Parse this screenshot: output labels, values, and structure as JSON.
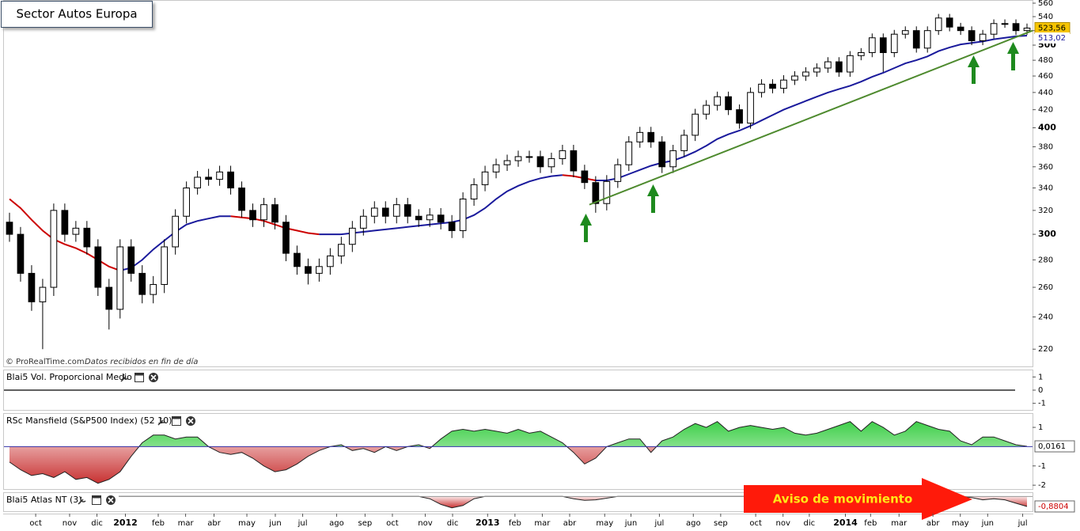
{
  "chart_data": [
    {
      "type": "candlestick",
      "title": "Sector Autos Europa",
      "source": "© ProRealTime.com",
      "source_note": "Datos recibidos en fin de día",
      "log_scale": true,
      "ylim": [
        210,
        560
      ],
      "yticks": [
        220,
        240,
        260,
        280,
        300,
        320,
        340,
        360,
        380,
        400,
        420,
        440,
        460,
        480,
        500,
        520,
        540,
        560
      ],
      "xlim": [
        -0.5,
        93.5
      ],
      "xticks": [
        {
          "value": 2.4,
          "label": "oct"
        },
        {
          "value": 5.5,
          "label": "nov"
        },
        {
          "value": 8.0,
          "label": "dic"
        },
        {
          "value": 10.6,
          "label": "2012"
        },
        {
          "value": 13.6,
          "label": "feb"
        },
        {
          "value": 16.1,
          "label": "mar"
        },
        {
          "value": 18.7,
          "label": "abr"
        },
        {
          "value": 21.7,
          "label": "may"
        },
        {
          "value": 24.3,
          "label": "jun"
        },
        {
          "value": 26.8,
          "label": "jul"
        },
        {
          "value": 29.9,
          "label": "ago"
        },
        {
          "value": 32.5,
          "label": "sep"
        },
        {
          "value": 35.0,
          "label": "oct"
        },
        {
          "value": 38.0,
          "label": "nov"
        },
        {
          "value": 40.5,
          "label": "dic"
        },
        {
          "value": 43.7,
          "label": "2013"
        },
        {
          "value": 46.2,
          "label": "feb"
        },
        {
          "value": 48.7,
          "label": "mar"
        },
        {
          "value": 51.2,
          "label": "abr"
        },
        {
          "value": 54.4,
          "label": "may"
        },
        {
          "value": 56.8,
          "label": "jun"
        },
        {
          "value": 59.4,
          "label": "jul"
        },
        {
          "value": 62.5,
          "label": "ago"
        },
        {
          "value": 65.0,
          "label": "sep"
        },
        {
          "value": 68.2,
          "label": "oct"
        },
        {
          "value": 70.7,
          "label": "nov"
        },
        {
          "value": 73.1,
          "label": "dic"
        },
        {
          "value": 76.4,
          "label": "2014"
        },
        {
          "value": 78.7,
          "label": "feb"
        },
        {
          "value": 81.3,
          "label": "mar"
        },
        {
          "value": 84.4,
          "label": "abr"
        },
        {
          "value": 86.9,
          "label": "may"
        },
        {
          "value": 89.4,
          "label": "jun"
        },
        {
          "value": 92.6,
          "label": "jul"
        }
      ],
      "up_color": "#ffffff",
      "down_color": "#000000",
      "candles": [
        [
          310,
          318,
          294,
          300
        ],
        [
          300,
          306,
          264,
          270
        ],
        [
          270,
          276,
          244,
          250
        ],
        [
          250,
          266,
          220,
          260
        ],
        [
          260,
          326,
          254,
          320
        ],
        [
          320,
          326,
          294,
          300
        ],
        [
          300,
          311,
          294,
          305
        ],
        [
          305,
          311,
          284,
          290
        ],
        [
          290,
          296,
          254,
          260
        ],
        [
          260,
          266,
          232,
          245
        ],
        [
          245,
          296,
          239,
          290
        ],
        [
          290,
          296,
          264,
          270
        ],
        [
          270,
          276,
          249,
          255
        ],
        [
          255,
          268,
          249,
          262
        ],
        [
          262,
          296,
          256,
          290
        ],
        [
          290,
          321,
          284,
          315
        ],
        [
          315,
          346,
          309,
          340
        ],
        [
          340,
          356,
          334,
          350
        ],
        [
          350,
          358,
          342,
          348
        ],
        [
          348,
          361,
          342,
          355
        ],
        [
          355,
          361,
          334,
          340
        ],
        [
          340,
          346,
          314,
          320
        ],
        [
          320,
          326,
          306,
          312
        ],
        [
          312,
          331,
          306,
          325
        ],
        [
          325,
          331,
          304,
          310
        ],
        [
          310,
          316,
          279,
          285
        ],
        [
          285,
          291,
          269,
          275
        ],
        [
          275,
          281,
          262,
          270
        ],
        [
          270,
          281,
          264,
          275
        ],
        [
          275,
          289,
          269,
          283
        ],
        [
          283,
          298,
          277,
          292
        ],
        [
          292,
          311,
          286,
          305
        ],
        [
          305,
          321,
          299,
          315
        ],
        [
          315,
          328,
          309,
          322
        ],
        [
          322,
          328,
          309,
          315
        ],
        [
          315,
          331,
          309,
          325
        ],
        [
          325,
          331,
          309,
          315
        ],
        [
          315,
          321,
          306,
          312
        ],
        [
          312,
          322,
          306,
          316
        ],
        [
          316,
          322,
          304,
          310
        ],
        [
          310,
          316,
          297,
          303
        ],
        [
          303,
          336,
          297,
          330
        ],
        [
          330,
          349,
          324,
          343
        ],
        [
          343,
          361,
          337,
          355
        ],
        [
          355,
          368,
          349,
          362
        ],
        [
          362,
          372,
          356,
          366
        ],
        [
          366,
          376,
          360,
          370
        ],
        [
          370,
          376,
          364,
          370
        ],
        [
          370,
          376,
          354,
          360
        ],
        [
          360,
          374,
          354,
          368
        ],
        [
          368,
          382,
          362,
          376
        ],
        [
          376,
          382,
          350,
          356
        ],
        [
          356,
          362,
          339,
          345
        ],
        [
          345,
          351,
          318,
          326
        ],
        [
          326,
          352,
          320,
          346
        ],
        [
          346,
          368,
          340,
          362
        ],
        [
          362,
          391,
          356,
          385
        ],
        [
          385,
          401,
          379,
          395
        ],
        [
          395,
          401,
          379,
          385
        ],
        [
          385,
          391,
          354,
          360
        ],
        [
          360,
          382,
          354,
          376
        ],
        [
          376,
          398,
          370,
          392
        ],
        [
          392,
          421,
          386,
          415
        ],
        [
          415,
          431,
          409,
          425
        ],
        [
          425,
          441,
          419,
          435
        ],
        [
          435,
          441,
          414,
          420
        ],
        [
          420,
          426,
          399,
          405
        ],
        [
          405,
          446,
          399,
          440
        ],
        [
          440,
          456,
          434,
          450
        ],
        [
          450,
          456,
          439,
          445
        ],
        [
          445,
          461,
          439,
          455
        ],
        [
          455,
          466,
          449,
          460
        ],
        [
          460,
          471,
          454,
          465
        ],
        [
          465,
          476,
          459,
          470
        ],
        [
          470,
          484,
          464,
          478
        ],
        [
          478,
          484,
          459,
          465
        ],
        [
          465,
          492,
          459,
          486
        ],
        [
          486,
          496,
          480,
          490
        ],
        [
          490,
          516,
          484,
          510
        ],
        [
          510,
          516,
          465,
          490
        ],
        [
          490,
          521,
          484,
          515
        ],
        [
          515,
          526,
          509,
          520
        ],
        [
          520,
          526,
          490,
          496
        ],
        [
          496,
          526,
          490,
          520
        ],
        [
          520,
          544,
          514,
          538
        ],
        [
          538,
          544,
          519,
          525
        ],
        [
          525,
          531,
          514,
          520
        ],
        [
          520,
          526,
          500,
          506
        ],
        [
          506,
          521,
          500,
          515
        ],
        [
          515,
          536,
          509,
          530
        ],
        [
          530,
          536,
          524,
          530
        ],
        [
          530,
          536,
          514,
          520
        ],
        [
          520,
          530,
          514,
          523.56
        ]
      ],
      "ma": {
        "rising_color": "#1a1a9c",
        "falling_color": "#cc0000",
        "values": [
          330,
          322,
          312,
          303,
          296,
          292,
          289,
          285,
          280,
          275,
          272,
          274,
          280,
          288,
          295,
          302,
          308,
          311,
          313,
          315,
          315,
          314,
          313,
          311,
          308,
          305,
          303,
          301,
          300,
          300,
          300,
          301,
          302,
          303,
          304,
          305,
          306,
          307,
          308,
          309,
          310,
          312,
          316,
          322,
          330,
          337,
          342,
          346,
          349,
          351,
          352,
          351,
          349,
          347,
          347,
          349,
          353,
          357,
          361,
          364,
          366,
          370,
          375,
          381,
          388,
          393,
          397,
          402,
          408,
          414,
          420,
          425,
          430,
          435,
          440,
          444,
          448,
          453,
          459,
          464,
          470,
          476,
          480,
          485,
          492,
          497,
          501,
          503,
          505,
          508,
          510,
          512,
          513.02
        ]
      },
      "trendline": {
        "x": [
          53,
          93.5
        ],
        "values": [
          325,
          520
        ],
        "color": "#4e8a2e"
      },
      "last_price": {
        "value": 523.56,
        "label": "523,56"
      },
      "last_ma": {
        "value": 513.02,
        "label": "513,02"
      }
    },
    {
      "type": "level",
      "title": "Blai5 Vol. Proporcional Medio",
      "value": 0,
      "ylim": [
        -1.5,
        1.5
      ],
      "yticks": [
        1,
        0,
        -1
      ]
    },
    {
      "type": "area",
      "title": "RSc Mansfield (S&P500 Index) (52 10)",
      "ylim": [
        -2.2,
        1.7
      ],
      "yticks": [
        1,
        -1,
        -2
      ],
      "baseline_color": "#3333aa",
      "values": [
        -0.8,
        -1.2,
        -1.5,
        -1.4,
        -1.6,
        -1.3,
        -1.7,
        -1.6,
        -1.9,
        -1.7,
        -1.3,
        -0.5,
        0.2,
        0.6,
        0.6,
        0.4,
        0.5,
        0.5,
        0.0,
        -0.3,
        -0.4,
        -0.3,
        -0.6,
        -1.0,
        -1.3,
        -1.2,
        -0.9,
        -0.5,
        -0.2,
        0.0,
        0.1,
        -0.2,
        -0.1,
        -0.3,
        0.0,
        -0.2,
        0.0,
        0.1,
        -0.1,
        0.4,
        0.8,
        0.9,
        0.8,
        0.9,
        0.8,
        0.7,
        0.9,
        0.7,
        0.8,
        0.5,
        0.2,
        -0.3,
        -0.9,
        -0.6,
        0.0,
        0.2,
        0.4,
        0.4,
        -0.3,
        0.3,
        0.5,
        0.9,
        1.2,
        1.0,
        1.3,
        0.8,
        1.0,
        1.1,
        1.0,
        0.9,
        1.0,
        0.7,
        0.6,
        0.7,
        0.9,
        1.1,
        1.3,
        0.8,
        1.3,
        1.0,
        0.6,
        0.8,
        1.3,
        1.1,
        0.9,
        0.8,
        0.3,
        0.1,
        0.5,
        0.5,
        0.3,
        0.1,
        0.0161
      ],
      "last": {
        "value": 0.0161,
        "label": "0,0161"
      }
    },
    {
      "type": "area",
      "title": "Blai5 Atlas NT (3)",
      "ylim": [
        -1.3,
        0.3
      ],
      "baseline_color": "#999999",
      "values": [
        0,
        0,
        0,
        0,
        0,
        0,
        0,
        0,
        0,
        0,
        0,
        0,
        0,
        0,
        0,
        0,
        0,
        0,
        0,
        0,
        0,
        0,
        0,
        0,
        0,
        0,
        0,
        0,
        0,
        0,
        0,
        0,
        0,
        0,
        0,
        0,
        0,
        0,
        -0.2,
        -0.7,
        -1.0,
        -0.8,
        -0.2,
        0,
        0,
        0,
        0,
        0,
        0,
        0,
        0,
        -0.2,
        -0.35,
        -0.3,
        -0.15,
        0,
        0,
        0,
        0,
        0,
        0,
        0,
        0,
        0,
        0,
        0,
        0,
        0,
        0,
        0,
        0,
        0,
        0,
        0,
        0,
        0,
        0,
        0,
        0,
        0,
        0,
        0,
        0,
        0,
        0,
        0,
        0,
        -0.1,
        -0.3,
        -0.2,
        -0.3,
        -0.6,
        -0.8804
      ],
      "last": {
        "value": -0.8804,
        "label": "-0,8804"
      },
      "annotation": "Aviso de movimiento"
    }
  ]
}
